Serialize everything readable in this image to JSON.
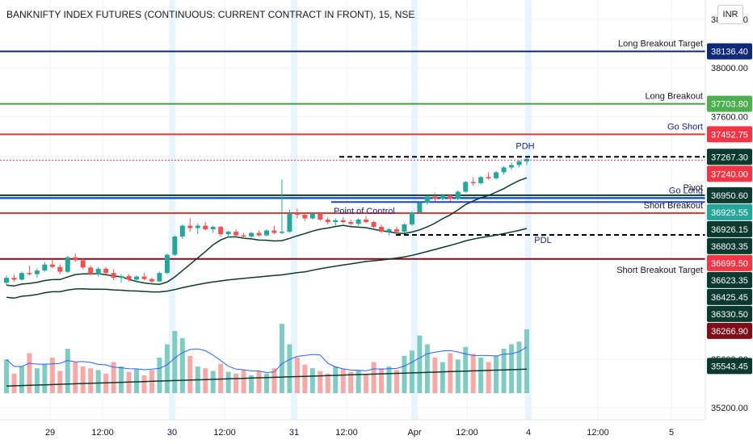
{
  "header": {
    "title": "BANKNIFTY INDEX FUTURES (CONTINUOUS: CURRENT CONTRACT IN FRONT), 15, NSE",
    "currency": "INR"
  },
  "chart_data": {
    "type": "candlestick",
    "y_axis": {
      "range": [
        35100,
        38560
      ],
      "tick_labels": [
        "38400.00",
        "38000.00",
        "37600.00",
        "35600.00",
        "35200.00"
      ],
      "tick_values": [
        38400,
        38000,
        37600,
        35600,
        35200
      ]
    },
    "x_axis": {
      "tick_labels": [
        "29",
        "12:00",
        "30",
        "12:00",
        "31",
        "12:00",
        "Apr",
        "12:00",
        "4",
        "12:00",
        "5"
      ]
    },
    "levels": [
      {
        "name": "Long Breakout Target",
        "value": 38136.4,
        "tag": "38136.40",
        "color": "#0d2a7a",
        "tag_color": "#0d2a7a",
        "style": "solid",
        "label_color": "#131722"
      },
      {
        "name": "Long Breakout",
        "value": 37703.8,
        "tag": "37703.80",
        "color": "#43a047",
        "tag_color": "#4caf50",
        "style": "solid",
        "label_color": "#131722"
      },
      {
        "name": "Go Short",
        "value": 37452.75,
        "tag": "37452.75",
        "color": "#e53935",
        "tag_color": "#f23645",
        "style": "solid",
        "label_color": "#1a237e"
      },
      {
        "name": "PDH",
        "value": 37267.3,
        "tag": "37267.30",
        "color": "#000000",
        "tag_color": "#0c3b2e",
        "style": "dashed",
        "label_color": "#1a237e"
      },
      {
        "name": "",
        "value": 37240.0,
        "tag": "37240.00",
        "color": "#f23645",
        "tag_color": "#f23645",
        "style": "dotted",
        "label_color": "#131722"
      },
      {
        "name": "Pivot",
        "value": 36950.6,
        "tag": "36950.60",
        "color": "#0c3b2e",
        "tag_color": "#0c3b2e",
        "style": "solid",
        "label_color": "#131722"
      },
      {
        "name": "",
        "value": 36929.55,
        "tag": "36929.55",
        "color": "#26a69a",
        "tag_color": "#26a69a",
        "style": "solid",
        "label_color": "#131722"
      },
      {
        "name": "Go Long",
        "value": 36926.15,
        "tag": "36926.15",
        "color": "#1e40d8",
        "tag_color": "#0c3b2e",
        "style": "solid",
        "label_color": "#1a237e"
      },
      {
        "name": "Short Breakout",
        "value": 36803.35,
        "tag": "36803.35",
        "color": "#e53935",
        "tag_color": "#0c3b2e",
        "style": "solid",
        "label_color": "#131722"
      },
      {
        "name": "Point of Control",
        "value": 36803.35,
        "tag": "",
        "color": "#1e40d8",
        "tag_color": "#2962ff",
        "style": "solid",
        "label_color": "#1a237e"
      },
      {
        "name": "",
        "value": 36699.5,
        "tag": "36699.50",
        "color": "#f23645",
        "tag_color": "#f23645",
        "style": "none",
        "label_color": "#131722"
      },
      {
        "name": "PDL",
        "value": 36623.35,
        "tag": "36623.35",
        "color": "#000000",
        "tag_color": "#0c3b2e",
        "style": "dashed",
        "label_color": "#1a237e"
      },
      {
        "name": "Short Breakout Target",
        "value": 36425.45,
        "tag": "36425.45",
        "color": "#7f0d1a",
        "tag_color": "#0c3b2e",
        "style": "solid",
        "label_color": "#131722"
      },
      {
        "name": "",
        "value": 36330.5,
        "tag": "36330.50",
        "color": "#0c3b2e",
        "tag_color": "#0c3b2e",
        "style": "none",
        "label_color": "#131722"
      },
      {
        "name": "",
        "value": 36266.9,
        "tag": "36266.90",
        "color": "#7f0d1a",
        "tag_color": "#7f0d1a",
        "style": "none",
        "label_color": "#131722"
      },
      {
        "name": "",
        "value": 35543.45,
        "tag": "35543.45",
        "color": "#0c3b2e",
        "tag_color": "#0c3b2e",
        "style": "none",
        "label_color": "#131722"
      }
    ],
    "candles_ohlc": [
      [
        36230,
        36290,
        36210,
        36270
      ],
      [
        36270,
        36300,
        36240,
        36255
      ],
      [
        36255,
        36320,
        36250,
        36310
      ],
      [
        36310,
        36370,
        36290,
        36300
      ],
      [
        36300,
        36350,
        36270,
        36330
      ],
      [
        36330,
        36400,
        36320,
        36380
      ],
      [
        36380,
        36420,
        36350,
        36360
      ],
      [
        36360,
        36380,
        36300,
        36320
      ],
      [
        36320,
        36450,
        36310,
        36440
      ],
      [
        36440,
        36470,
        36400,
        36415
      ],
      [
        36415,
        36430,
        36340,
        36355
      ],
      [
        36355,
        36370,
        36290,
        36300
      ],
      [
        36300,
        36360,
        36280,
        36345
      ],
      [
        36345,
        36360,
        36300,
        36310
      ],
      [
        36310,
        36340,
        36250,
        36270
      ],
      [
        36270,
        36300,
        36230,
        36285
      ],
      [
        36285,
        36300,
        36240,
        36255
      ],
      [
        36255,
        36290,
        36230,
        36280
      ],
      [
        36280,
        36310,
        36250,
        36260
      ],
      [
        36260,
        36270,
        36220,
        36240
      ],
      [
        36240,
        36320,
        36240,
        36310
      ],
      [
        36310,
        36470,
        36300,
        36460
      ],
      [
        36460,
        36620,
        36450,
        36610
      ],
      [
        36610,
        36710,
        36590,
        36700
      ],
      [
        36700,
        36760,
        36650,
        36680
      ],
      [
        36680,
        36720,
        36630,
        36700
      ],
      [
        36700,
        36730,
        36660,
        36670
      ],
      [
        36670,
        36700,
        36640,
        36690
      ],
      [
        36690,
        36700,
        36610,
        36630
      ],
      [
        36630,
        36660,
        36600,
        36650
      ],
      [
        36650,
        36670,
        36610,
        36620
      ],
      [
        36620,
        36640,
        36590,
        36610
      ],
      [
        36610,
        36650,
        36600,
        36640
      ],
      [
        36640,
        36660,
        36610,
        36620
      ],
      [
        36620,
        36670,
        36610,
        36660
      ],
      [
        36660,
        36700,
        36630,
        36640
      ],
      [
        36640,
        37080,
        36630,
        36650
      ],
      [
        36650,
        36830,
        36640,
        36800
      ],
      [
        36800,
        36840,
        36760,
        36790
      ],
      [
        36790,
        36800,
        36740,
        36760
      ],
      [
        36760,
        36810,
        36750,
        36800
      ],
      [
        36800,
        36810,
        36740,
        36750
      ],
      [
        36750,
        36770,
        36710,
        36730
      ],
      [
        36730,
        36760,
        36700,
        36745
      ],
      [
        36745,
        36770,
        36720,
        36730
      ],
      [
        36730,
        36750,
        36700,
        36715
      ],
      [
        36715,
        36760,
        36700,
        36750
      ],
      [
        36750,
        36780,
        36720,
        36730
      ],
      [
        36730,
        36740,
        36680,
        36690
      ],
      [
        36690,
        36710,
        36640,
        36650
      ],
      [
        36650,
        36680,
        36620,
        36670
      ],
      [
        36670,
        36690,
        36640,
        36650
      ],
      [
        36650,
        36720,
        36640,
        36710
      ],
      [
        36710,
        36820,
        36700,
        36810
      ],
      [
        36810,
        36900,
        36800,
        36890
      ],
      [
        36890,
        36950,
        36870,
        36940
      ],
      [
        36940,
        36970,
        36900,
        36920
      ],
      [
        36920,
        36960,
        36910,
        36950
      ],
      [
        36950,
        36960,
        36900,
        36920
      ],
      [
        36920,
        36990,
        36910,
        36980
      ],
      [
        36980,
        37070,
        36970,
        37060
      ],
      [
        37060,
        37100,
        37030,
        37050
      ],
      [
        37050,
        37110,
        37040,
        37100
      ],
      [
        37100,
        37140,
        37080,
        37090
      ],
      [
        37090,
        37150,
        37080,
        37140
      ],
      [
        37140,
        37190,
        37120,
        37180
      ],
      [
        37180,
        37220,
        37160,
        37200
      ],
      [
        37200,
        37240,
        37180,
        37230
      ],
      [
        37230,
        37260,
        37200,
        37250
      ]
    ],
    "volumes": [
      0.38,
      0.22,
      0.3,
      0.45,
      0.28,
      0.33,
      0.4,
      0.25,
      0.5,
      0.35,
      0.3,
      0.28,
      0.26,
      0.22,
      0.35,
      0.3,
      0.24,
      0.27,
      0.2,
      0.26,
      0.4,
      0.55,
      0.7,
      0.62,
      0.42,
      0.3,
      0.28,
      0.25,
      0.33,
      0.24,
      0.22,
      0.26,
      0.2,
      0.25,
      0.22,
      0.28,
      0.78,
      0.55,
      0.4,
      0.32,
      0.28,
      0.25,
      0.22,
      0.3,
      0.27,
      0.24,
      0.26,
      0.22,
      0.35,
      0.28,
      0.3,
      0.26,
      0.42,
      0.48,
      0.65,
      0.55,
      0.4,
      0.35,
      0.45,
      0.38,
      0.52,
      0.44,
      0.4,
      0.35,
      0.42,
      0.5,
      0.55,
      0.58,
      0.72
    ]
  }
}
